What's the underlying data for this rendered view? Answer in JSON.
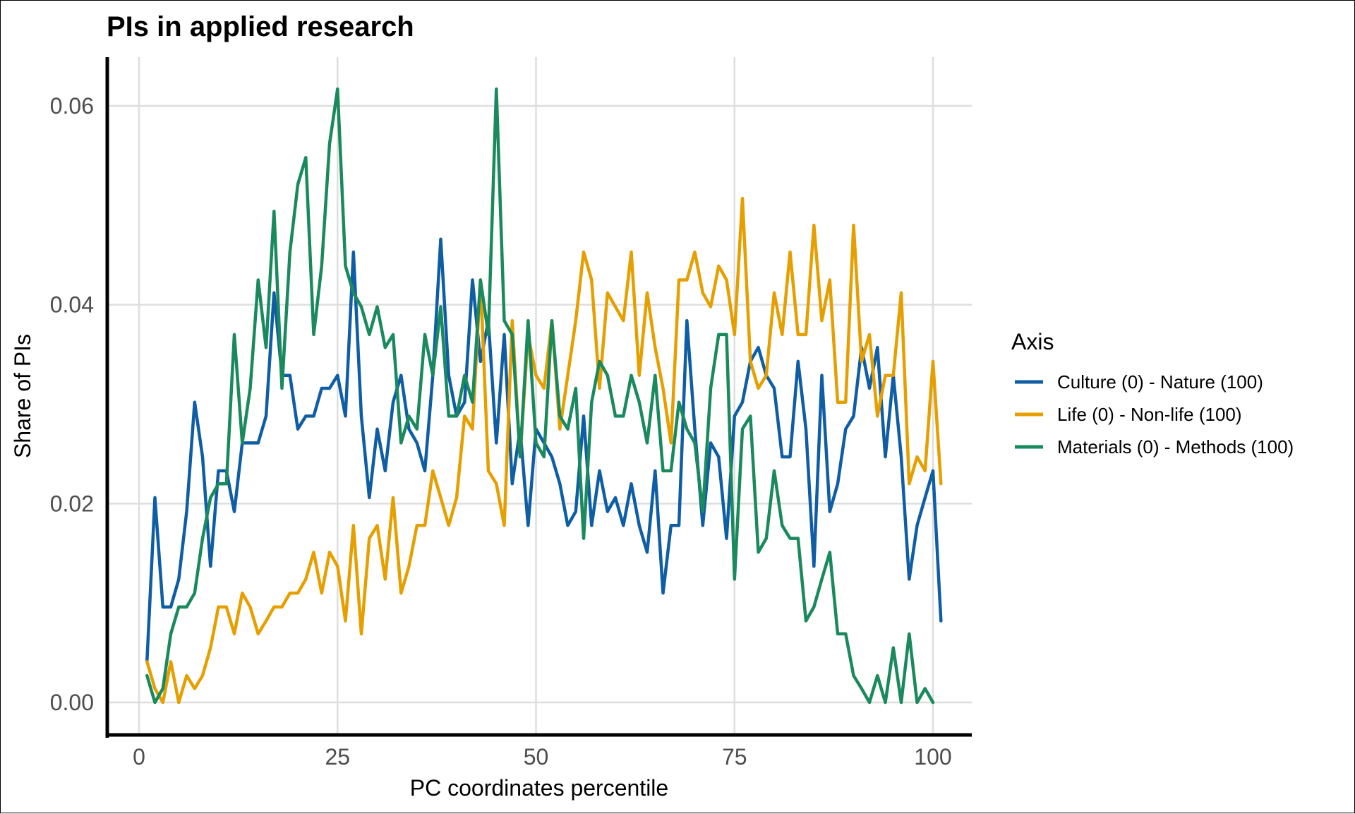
{
  "chart_data": {
    "type": "line",
    "title": "PIs in applied research",
    "xlabel": "PC coordinates percentile",
    "ylabel": "Share of PIs",
    "xlim": [
      -1,
      103
    ],
    "ylim": [
      -0.003,
      0.066
    ],
    "x_ticks": [
      0,
      25,
      50,
      75,
      100
    ],
    "x_tick_labels": [
      "0",
      "25",
      "50",
      "75",
      "100"
    ],
    "y_ticks": [
      0,
      0.02,
      0.04,
      0.06
    ],
    "y_tick_labels": [
      "0.00",
      "0.02",
      "0.04",
      "0.06"
    ],
    "grid": true,
    "legend": {
      "title": "Axis",
      "position": "right"
    },
    "series": [
      {
        "name": "Culture (0) - Nature (100)",
        "color": "#0f5ea5",
        "points": [
          [
            1,
            0.0042
          ],
          [
            2,
            0.0206
          ],
          [
            3,
            0.0096
          ],
          [
            4,
            0.0096
          ],
          [
            5,
            0.0124
          ],
          [
            6,
            0.0192
          ],
          [
            7,
            0.0302
          ],
          [
            8,
            0.0247
          ],
          [
            9,
            0.0137
          ],
          [
            10,
            0.0233
          ],
          [
            11,
            0.0233
          ],
          [
            12,
            0.0192
          ],
          [
            13,
            0.0261
          ],
          [
            14,
            0.0261
          ],
          [
            15,
            0.0261
          ],
          [
            16,
            0.0288
          ],
          [
            17,
            0.0412
          ],
          [
            18,
            0.0329
          ],
          [
            19,
            0.0329
          ],
          [
            20,
            0.0275
          ],
          [
            21,
            0.0288
          ],
          [
            22,
            0.0288
          ],
          [
            23,
            0.0316
          ],
          [
            24,
            0.0316
          ],
          [
            25,
            0.0329
          ],
          [
            26,
            0.0288
          ],
          [
            27,
            0.0453
          ],
          [
            28,
            0.0288
          ],
          [
            29,
            0.0206
          ],
          [
            30,
            0.0275
          ],
          [
            31,
            0.0233
          ],
          [
            32,
            0.0302
          ],
          [
            33,
            0.0329
          ],
          [
            34,
            0.0275
          ],
          [
            35,
            0.0261
          ],
          [
            36,
            0.0233
          ],
          [
            37,
            0.0329
          ],
          [
            38,
            0.0466
          ],
          [
            39,
            0.0329
          ],
          [
            40,
            0.0288
          ],
          [
            41,
            0.0302
          ],
          [
            42,
            0.0425
          ],
          [
            43,
            0.0343
          ],
          [
            44,
            0.0384
          ],
          [
            45,
            0.0261
          ],
          [
            46,
            0.037
          ],
          [
            47,
            0.022
          ],
          [
            48,
            0.0275
          ],
          [
            49,
            0.0178
          ],
          [
            50,
            0.0275
          ],
          [
            51,
            0.0261
          ],
          [
            52,
            0.0247
          ],
          [
            53,
            0.022
          ],
          [
            54,
            0.0178
          ],
          [
            55,
            0.0192
          ],
          [
            56,
            0.0288
          ],
          [
            57,
            0.0178
          ],
          [
            58,
            0.0233
          ],
          [
            59,
            0.0192
          ],
          [
            60,
            0.0206
          ],
          [
            61,
            0.0178
          ],
          [
            62,
            0.022
          ],
          [
            63,
            0.0178
          ],
          [
            64,
            0.0151
          ],
          [
            65,
            0.0233
          ],
          [
            66,
            0.011
          ],
          [
            67,
            0.0178
          ],
          [
            68,
            0.0178
          ],
          [
            69,
            0.0384
          ],
          [
            70,
            0.0275
          ],
          [
            71,
            0.0178
          ],
          [
            72,
            0.0261
          ],
          [
            73,
            0.0247
          ],
          [
            74,
            0.0165
          ],
          [
            75,
            0.0288
          ],
          [
            76,
            0.0302
          ],
          [
            77,
            0.0343
          ],
          [
            78,
            0.0357
          ],
          [
            79,
            0.0329
          ],
          [
            80,
            0.0316
          ],
          [
            81,
            0.0247
          ],
          [
            82,
            0.0247
          ],
          [
            83,
            0.0343
          ],
          [
            84,
            0.0275
          ],
          [
            85,
            0.0137
          ],
          [
            86,
            0.0329
          ],
          [
            87,
            0.0192
          ],
          [
            88,
            0.022
          ],
          [
            89,
            0.0275
          ],
          [
            90,
            0.0288
          ],
          [
            91,
            0.0357
          ],
          [
            92,
            0.0316
          ],
          [
            93,
            0.0357
          ],
          [
            94,
            0.0247
          ],
          [
            95,
            0.0329
          ],
          [
            96,
            0.0247
          ],
          [
            97,
            0.0124
          ],
          [
            98,
            0.0178
          ],
          [
            99,
            0.0206
          ],
          [
            100,
            0.0233
          ],
          [
            101,
            0.0082
          ]
        ]
      },
      {
        "name": "Life (0) - Non-life (100)",
        "color": "#e69f00",
        "points": [
          [
            1,
            0.0041
          ],
          [
            2,
            0.0014
          ],
          [
            3,
            0.0
          ],
          [
            4,
            0.0041
          ],
          [
            5,
            0.0
          ],
          [
            6,
            0.0027
          ],
          [
            7,
            0.0014
          ],
          [
            8,
            0.0027
          ],
          [
            9,
            0.0055
          ],
          [
            10,
            0.0096
          ],
          [
            11,
            0.0096
          ],
          [
            12,
            0.0069
          ],
          [
            13,
            0.011
          ],
          [
            14,
            0.0096
          ],
          [
            15,
            0.0069
          ],
          [
            16,
            0.0082
          ],
          [
            17,
            0.0096
          ],
          [
            18,
            0.0096
          ],
          [
            19,
            0.011
          ],
          [
            20,
            0.011
          ],
          [
            21,
            0.0124
          ],
          [
            22,
            0.0151
          ],
          [
            23,
            0.011
          ],
          [
            24,
            0.0151
          ],
          [
            25,
            0.0137
          ],
          [
            26,
            0.0082
          ],
          [
            27,
            0.0178
          ],
          [
            28,
            0.0069
          ],
          [
            29,
            0.0165
          ],
          [
            30,
            0.0178
          ],
          [
            31,
            0.0124
          ],
          [
            32,
            0.0206
          ],
          [
            33,
            0.011
          ],
          [
            34,
            0.0137
          ],
          [
            35,
            0.0178
          ],
          [
            36,
            0.0178
          ],
          [
            37,
            0.0233
          ],
          [
            38,
            0.0206
          ],
          [
            39,
            0.0178
          ],
          [
            40,
            0.0206
          ],
          [
            41,
            0.0288
          ],
          [
            42,
            0.0275
          ],
          [
            43,
            0.0425
          ],
          [
            44,
            0.0233
          ],
          [
            45,
            0.022
          ],
          [
            46,
            0.0178
          ],
          [
            47,
            0.0384
          ],
          [
            48,
            0.0247
          ],
          [
            49,
            0.037
          ],
          [
            50,
            0.0329
          ],
          [
            51,
            0.0316
          ],
          [
            52,
            0.0384
          ],
          [
            53,
            0.0275
          ],
          [
            54,
            0.0329
          ],
          [
            55,
            0.0384
          ],
          [
            56,
            0.0453
          ],
          [
            57,
            0.0425
          ],
          [
            58,
            0.0316
          ],
          [
            59,
            0.0412
          ],
          [
            60,
            0.0398
          ],
          [
            61,
            0.0384
          ],
          [
            62,
            0.0453
          ],
          [
            63,
            0.0329
          ],
          [
            64,
            0.0412
          ],
          [
            65,
            0.0357
          ],
          [
            66,
            0.0316
          ],
          [
            67,
            0.0261
          ],
          [
            68,
            0.0425
          ],
          [
            69,
            0.0425
          ],
          [
            70,
            0.0453
          ],
          [
            71,
            0.0412
          ],
          [
            72,
            0.0398
          ],
          [
            73,
            0.0439
          ],
          [
            74,
            0.0425
          ],
          [
            75,
            0.037
          ],
          [
            76,
            0.0507
          ],
          [
            77,
            0.0343
          ],
          [
            78,
            0.0316
          ],
          [
            79,
            0.0329
          ],
          [
            80,
            0.0412
          ],
          [
            81,
            0.037
          ],
          [
            82,
            0.0453
          ],
          [
            83,
            0.037
          ],
          [
            84,
            0.037
          ],
          [
            85,
            0.048
          ],
          [
            86,
            0.0384
          ],
          [
            87,
            0.0425
          ],
          [
            88,
            0.0302
          ],
          [
            89,
            0.0302
          ],
          [
            90,
            0.048
          ],
          [
            91,
            0.0343
          ],
          [
            92,
            0.037
          ],
          [
            93,
            0.0288
          ],
          [
            94,
            0.0329
          ],
          [
            95,
            0.0329
          ],
          [
            96,
            0.0412
          ],
          [
            97,
            0.022
          ],
          [
            98,
            0.0247
          ],
          [
            99,
            0.0233
          ],
          [
            100,
            0.0343
          ],
          [
            101,
            0.022
          ]
        ]
      },
      {
        "name": "Materials (0) - Methods (100)",
        "color": "#1a8a5e",
        "points": [
          [
            1,
            0.0027
          ],
          [
            2,
            0.0
          ],
          [
            3,
            0.0014
          ],
          [
            4,
            0.0069
          ],
          [
            5,
            0.0096
          ],
          [
            6,
            0.0096
          ],
          [
            7,
            0.011
          ],
          [
            8,
            0.0165
          ],
          [
            9,
            0.0206
          ],
          [
            10,
            0.022
          ],
          [
            11,
            0.022
          ],
          [
            12,
            0.037
          ],
          [
            13,
            0.0261
          ],
          [
            14,
            0.0316
          ],
          [
            15,
            0.0425
          ],
          [
            16,
            0.0357
          ],
          [
            17,
            0.0494
          ],
          [
            18,
            0.0316
          ],
          [
            19,
            0.0453
          ],
          [
            20,
            0.0521
          ],
          [
            21,
            0.0548
          ],
          [
            22,
            0.037
          ],
          [
            23,
            0.0439
          ],
          [
            24,
            0.0562
          ],
          [
            25,
            0.0617
          ],
          [
            26,
            0.0439
          ],
          [
            27,
            0.0412
          ],
          [
            28,
            0.0398
          ],
          [
            29,
            0.037
          ],
          [
            30,
            0.0398
          ],
          [
            31,
            0.0357
          ],
          [
            32,
            0.037
          ],
          [
            33,
            0.0261
          ],
          [
            34,
            0.0288
          ],
          [
            35,
            0.0275
          ],
          [
            36,
            0.037
          ],
          [
            37,
            0.0329
          ],
          [
            38,
            0.0398
          ],
          [
            39,
            0.0288
          ],
          [
            40,
            0.0288
          ],
          [
            41,
            0.0329
          ],
          [
            42,
            0.0302
          ],
          [
            43,
            0.0425
          ],
          [
            44,
            0.037
          ],
          [
            45,
            0.0617
          ],
          [
            46,
            0.0384
          ],
          [
            47,
            0.037
          ],
          [
            48,
            0.0247
          ],
          [
            49,
            0.0384
          ],
          [
            50,
            0.0261
          ],
          [
            51,
            0.0247
          ],
          [
            52,
            0.0384
          ],
          [
            53,
            0.0288
          ],
          [
            54,
            0.0275
          ],
          [
            55,
            0.0316
          ],
          [
            56,
            0.0165
          ],
          [
            57,
            0.0302
          ],
          [
            58,
            0.0343
          ],
          [
            59,
            0.0329
          ],
          [
            60,
            0.0288
          ],
          [
            61,
            0.0288
          ],
          [
            62,
            0.0329
          ],
          [
            63,
            0.0302
          ],
          [
            64,
            0.0261
          ],
          [
            65,
            0.0329
          ],
          [
            66,
            0.0233
          ],
          [
            67,
            0.0233
          ],
          [
            68,
            0.0302
          ],
          [
            69,
            0.0275
          ],
          [
            70,
            0.0261
          ],
          [
            71,
            0.0192
          ],
          [
            72,
            0.0316
          ],
          [
            73,
            0.037
          ],
          [
            74,
            0.037
          ],
          [
            75,
            0.0124
          ],
          [
            76,
            0.0275
          ],
          [
            77,
            0.0288
          ],
          [
            78,
            0.0151
          ],
          [
            79,
            0.0165
          ],
          [
            80,
            0.0233
          ],
          [
            81,
            0.0178
          ],
          [
            82,
            0.0165
          ],
          [
            83,
            0.0165
          ],
          [
            84,
            0.0082
          ],
          [
            85,
            0.0096
          ],
          [
            86,
            0.0124
          ],
          [
            87,
            0.0151
          ],
          [
            88,
            0.0069
          ],
          [
            89,
            0.0069
          ],
          [
            90,
            0.0027
          ],
          [
            91,
            0.0014
          ],
          [
            92,
            0.0
          ],
          [
            93,
            0.0027
          ],
          [
            94,
            0.0
          ],
          [
            95,
            0.0055
          ],
          [
            96,
            0.0
          ],
          [
            97,
            0.0069
          ],
          [
            98,
            0.0
          ],
          [
            99,
            0.0014
          ],
          [
            100,
            0.0
          ]
        ]
      }
    ]
  }
}
